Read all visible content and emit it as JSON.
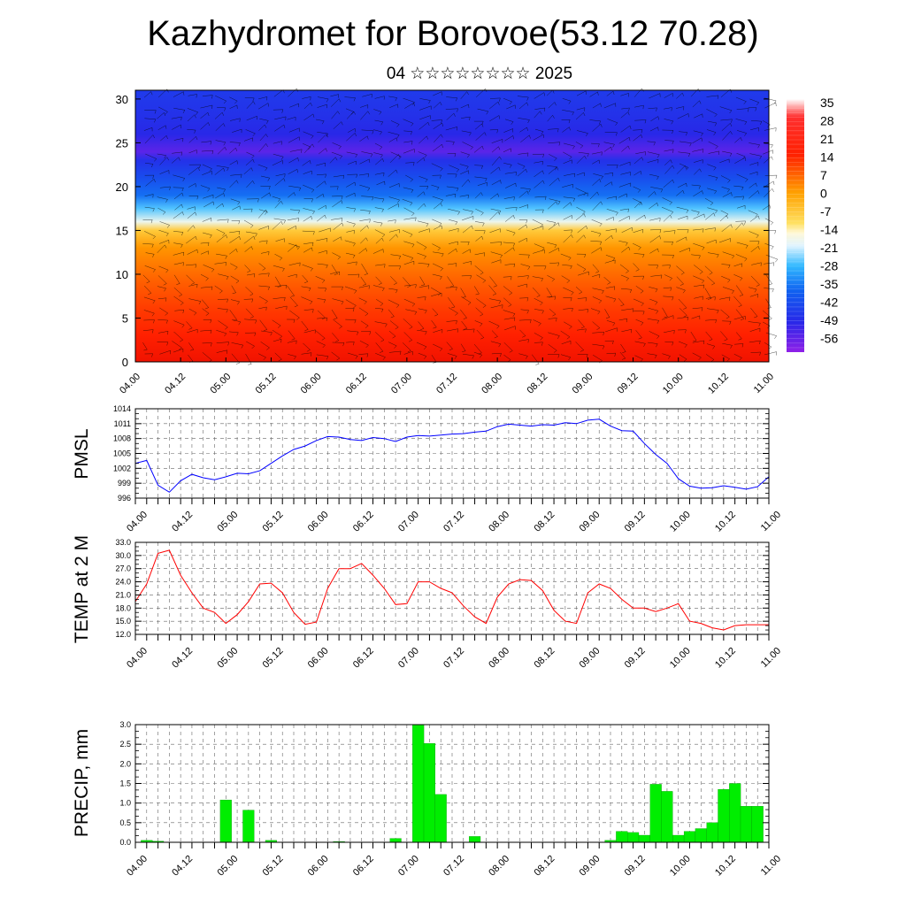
{
  "header": {
    "title": "Kazhydromet for Borovoe(53.12 70.28)",
    "subtitle": "04 ☆☆☆☆☆☆☆☆ 2025"
  },
  "colors": {
    "pmsl_line": "#0000ff",
    "temp_line": "#ff0000",
    "precip_bar": "#00ee00",
    "precip_bar_edge": "#008800"
  },
  "chart_data": [
    {
      "type": "heatmap",
      "title": "",
      "xlabel": "",
      "ylabel": "",
      "x_tick_labels": [
        "04.00",
        "04.12",
        "05.00",
        "05.12",
        "06.00",
        "06.12",
        "07.00",
        "07.12",
        "08.00",
        "08.12",
        "09.00",
        "09.12",
        "10.00",
        "10.12",
        "11.00"
      ],
      "y_ticks": [
        0,
        5,
        10,
        15,
        20,
        25,
        30
      ],
      "ylim": [
        0,
        31
      ],
      "colorbar_labels": [
        "35",
        "28",
        "21",
        "14",
        "7",
        "0",
        "-7",
        "-14",
        "-21",
        "-28",
        "-35",
        "-42",
        "-49",
        "-56"
      ],
      "profile": {
        "heights": [
          0,
          3,
          6,
          9,
          11,
          13,
          15,
          16,
          17.5,
          19,
          21,
          23,
          24,
          26,
          28,
          31
        ],
        "values": [
          30,
          26,
          22,
          17,
          13,
          9,
          0,
          -14,
          -26,
          -38,
          -44,
          -50,
          -56,
          -52,
          -50,
          -48
        ]
      },
      "overlay": "wind barbs"
    },
    {
      "type": "line",
      "ylabel": "PMSL",
      "x_tick_labels": [
        "04.00",
        "04.12",
        "05.00",
        "05.12",
        "06.00",
        "06.12",
        "07.00",
        "07.12",
        "08.00",
        "08.12",
        "09.00",
        "09.12",
        "10.00",
        "10.12",
        "11.00"
      ],
      "ylim": [
        996,
        1014
      ],
      "y_ticks": [
        "996",
        "999",
        "1002",
        "1005",
        "1008",
        "1011",
        "1014"
      ],
      "series": [
        {
          "x_hours": [
            0,
            3,
            6,
            9,
            12,
            15,
            18,
            21,
            24,
            27,
            30,
            33,
            36,
            39,
            42,
            45,
            48,
            51,
            54,
            57,
            60,
            63,
            66,
            69,
            72,
            75,
            78,
            81,
            84,
            87,
            90,
            93,
            96,
            99,
            102,
            105,
            108,
            111,
            114,
            117,
            120,
            123,
            126,
            129,
            132,
            135,
            138,
            141,
            144,
            147,
            150,
            153,
            156,
            159,
            162,
            165,
            168
          ],
          "values": [
            1003,
            1003.6,
            998.6,
            997.2,
            999.5,
            1000.8,
            1000.1,
            999.7,
            1000.3,
            1001,
            1000.9,
            1001.5,
            1003,
            1004.5,
            1005.8,
            1006.5,
            1007.6,
            1008.4,
            1008.3,
            1007.8,
            1007.6,
            1008.2,
            1008,
            1007.4,
            1008.3,
            1008.6,
            1008.5,
            1008.7,
            1008.9,
            1009,
            1009.3,
            1009.5,
            1010.4,
            1010.9,
            1010.7,
            1010.5,
            1010.8,
            1010.7,
            1011.2,
            1011,
            1011.7,
            1011.9,
            1010.5,
            1009.6,
            1009.5,
            1007,
            1004.8,
            1003,
            999.9,
            998.4,
            998,
            998.1,
            998.5,
            998.2,
            997.8,
            998.3,
            1000.3
          ]
        }
      ]
    },
    {
      "type": "line",
      "ylabel": "TEMP at 2 M",
      "x_tick_labels": [
        "04.00",
        "04.12",
        "05.00",
        "05.12",
        "06.00",
        "06.12",
        "07.00",
        "07.12",
        "08.00",
        "08.12",
        "09.00",
        "09.12",
        "10.00",
        "10.12",
        "11.00"
      ],
      "ylim": [
        12,
        33
      ],
      "y_ticks": [
        "12.0",
        "15.0",
        "18.0",
        "21.0",
        "24.0",
        "27.0",
        "30.0",
        "33.0"
      ],
      "series": [
        {
          "x_hours": [
            0,
            3,
            6,
            9,
            12,
            15,
            18,
            21,
            24,
            27,
            30,
            33,
            36,
            39,
            42,
            45,
            48,
            51,
            54,
            57,
            60,
            63,
            66,
            69,
            72,
            75,
            78,
            81,
            84,
            87,
            90,
            93,
            96,
            99,
            102,
            105,
            108,
            111,
            114,
            117,
            120,
            123,
            126,
            129,
            132,
            135,
            138,
            141,
            144,
            147,
            150,
            153,
            156,
            159,
            162,
            165,
            168
          ],
          "values": [
            19.5,
            23.5,
            30.5,
            31.2,
            25.5,
            21.5,
            18,
            17,
            14.5,
            16.5,
            19.5,
            23.5,
            23.7,
            21.5,
            17,
            14.3,
            14.8,
            22.5,
            27,
            27,
            28.2,
            25.5,
            22.5,
            18.8,
            19,
            24,
            24,
            22.5,
            21.5,
            18.5,
            16,
            14.5,
            20.5,
            23.5,
            24.5,
            24.3,
            22,
            17.5,
            15,
            14.5,
            21.5,
            23.5,
            22.5,
            20,
            18,
            18,
            17.2,
            18,
            19,
            15,
            14.5,
            13.5,
            13,
            14,
            14.2,
            14.2,
            14.2
          ]
        }
      ]
    },
    {
      "type": "bar",
      "ylabel": "PRECIP, mm",
      "x_tick_labels": [
        "04.00",
        "04.12",
        "05.00",
        "05.12",
        "06.00",
        "06.12",
        "07.00",
        "07.12",
        "08.00",
        "08.12",
        "09.00",
        "09.12",
        "10.00",
        "10.12",
        "11.00"
      ],
      "ylim": [
        0,
        3
      ],
      "y_ticks": [
        "0.0",
        "0.5",
        "1.0",
        "1.5",
        "2.0",
        "2.5",
        "3.0"
      ],
      "series": [
        {
          "x_hours": [
            3,
            6,
            24,
            30,
            36,
            54,
            69,
            75,
            78,
            81,
            90,
            126,
            129,
            132,
            135,
            138,
            141,
            144,
            147,
            150,
            153,
            156,
            159,
            162,
            165
          ],
          "values": [
            0.05,
            0.03,
            1.08,
            0.82,
            0.05,
            0.02,
            0.1,
            3.0,
            2.52,
            1.22,
            0.15,
            0.05,
            0.28,
            0.25,
            0.18,
            1.48,
            1.3,
            0.18,
            0.28,
            0.35,
            0.5,
            1.35,
            1.5,
            0.92,
            0.92
          ]
        }
      ],
      "bar_width_hours": 3
    }
  ]
}
